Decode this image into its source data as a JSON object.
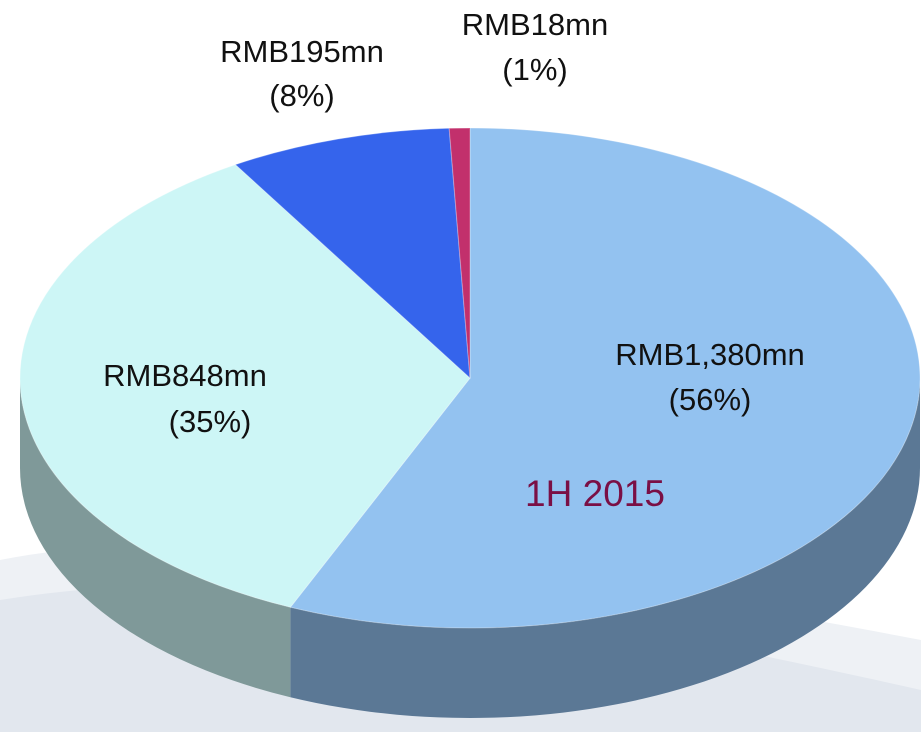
{
  "chart_data": {
    "type": "pie3d",
    "annotation": "1H 2015",
    "categories": [
      null,
      null,
      null,
      null
    ],
    "values": [
      1380,
      848,
      195,
      18
    ],
    "value_labels": [
      "RMB1,380mn",
      "RMB848mn",
      "RMB195mn",
      "RMB18mn"
    ],
    "percent_labels": [
      "(56%)",
      "(35%)",
      "(8%)",
      "(1%)"
    ],
    "colors": [
      "#93c2f0",
      "#cdf6f6",
      "#3564ec",
      "#c2306c"
    ]
  }
}
